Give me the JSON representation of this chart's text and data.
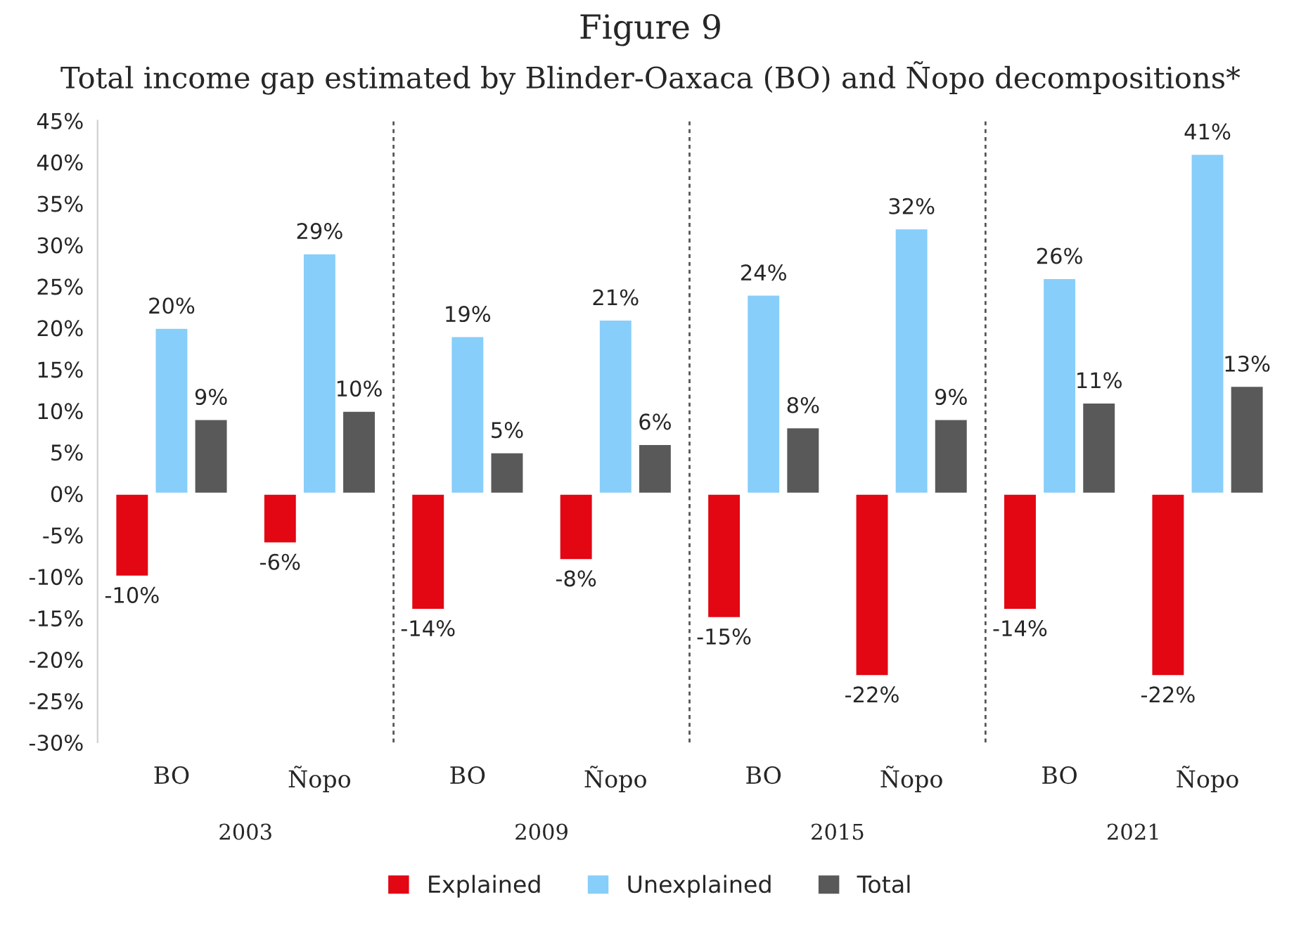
{
  "chart_data": {
    "type": "bar",
    "title": "Figure 9",
    "subtitle": "Total income gap estimated by Blinder-Oaxaca (BO) and Ñopo decompositions*",
    "categories": [
      "BO",
      "Ñopo",
      "BO",
      "Ñopo",
      "BO",
      "Ñopo",
      "BO",
      "Ñopo"
    ],
    "annotations": [
      "2003",
      "2009",
      "2015",
      "2021"
    ],
    "series": [
      {
        "name": "Explained",
        "color": "#e30613",
        "values": [
          -10,
          -6,
          -14,
          -8,
          -15,
          -22,
          -14,
          -22
        ],
        "value_labels": [
          "-10%",
          "-6%",
          "-14%",
          "-8%",
          "-15%",
          "-22%",
          "-14%",
          "-22%"
        ]
      },
      {
        "name": "Unexplained",
        "color": "#87cefa",
        "values": [
          20,
          29,
          19,
          21,
          24,
          32,
          26,
          41
        ],
        "value_labels": [
          "20%",
          "29%",
          "19%",
          "21%",
          "24%",
          "32%",
          "26%",
          "41%"
        ]
      },
      {
        "name": "Total",
        "color": "#595959",
        "values": [
          9,
          10,
          5,
          6,
          8,
          9,
          11,
          13
        ],
        "value_labels": [
          "9%",
          "10%",
          "5%",
          "6%",
          "8%",
          "9%",
          "11%",
          "13%"
        ]
      }
    ],
    "ylim": [
      -30,
      45
    ],
    "yticks": [
      {
        "value": -30,
        "label": "-30%"
      },
      {
        "value": -25,
        "label": "-25%"
      },
      {
        "value": -20,
        "label": "-20%"
      },
      {
        "value": -15,
        "label": "-15%"
      },
      {
        "value": -10,
        "label": "-10%"
      },
      {
        "value": -5,
        "label": "-5%"
      },
      {
        "value": 0,
        "label": "0%"
      },
      {
        "value": 5,
        "label": "5%"
      },
      {
        "value": 10,
        "label": "10%"
      },
      {
        "value": 15,
        "label": "15%"
      },
      {
        "value": 20,
        "label": "20%"
      },
      {
        "value": 25,
        "label": "25%"
      },
      {
        "value": 30,
        "label": "30%"
      },
      {
        "value": 35,
        "label": "35%"
      },
      {
        "value": 40,
        "label": "40%"
      },
      {
        "value": 45,
        "label": "45%"
      }
    ],
    "grid": false,
    "legend": "bottom"
  }
}
